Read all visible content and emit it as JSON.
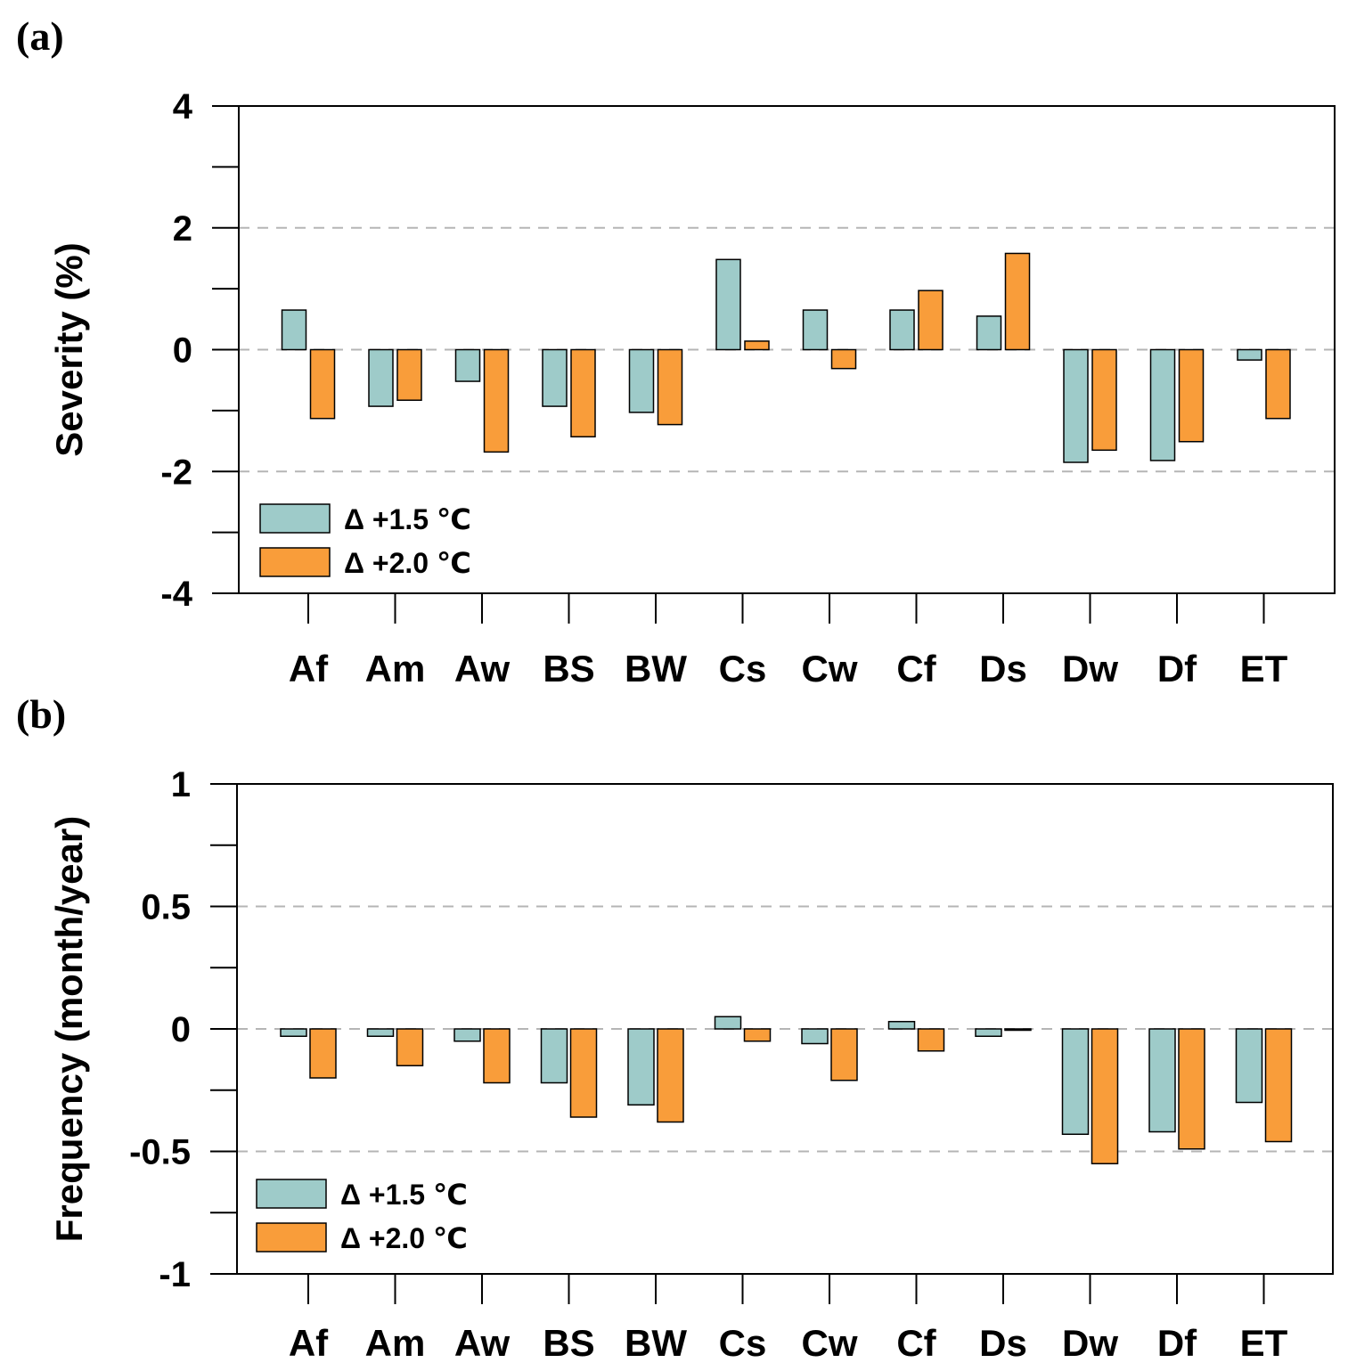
{
  "chart_data": [
    {
      "panel": "(a)",
      "type": "bar",
      "ylabel": "Severity  (%)",
      "ylim": [
        -4,
        4
      ],
      "yticks": [
        4,
        2,
        0,
        -2,
        -4
      ],
      "ytick_labels": [
        "4",
        "2",
        "0",
        "-2",
        "-4"
      ],
      "gridlines": [
        2,
        0,
        -2
      ],
      "categories": [
        "Af",
        "Am",
        "Aw",
        "BS",
        "BW",
        "Cs",
        "Cw",
        "Cf",
        "Ds",
        "Dw",
        "Df",
        "ET"
      ],
      "series": [
        {
          "name": "Δ +1.5 ℃",
          "color": "#9ecbc9",
          "values": [
            0.65,
            -0.93,
            -0.52,
            -0.93,
            -1.03,
            1.48,
            0.65,
            0.65,
            0.55,
            -1.85,
            -1.82,
            -0.17
          ]
        },
        {
          "name": "Δ +2.0 ℃",
          "color": "#f99d3a",
          "values": [
            -1.13,
            -0.83,
            -1.68,
            -1.43,
            -1.23,
            0.14,
            -0.31,
            0.97,
            1.58,
            -1.65,
            -1.51,
            -1.13
          ]
        }
      ],
      "legend_position": "bottom-left"
    },
    {
      "panel": "(b)",
      "type": "bar",
      "ylabel": "Frequency (month/year)",
      "ylim": [
        -1,
        1
      ],
      "yticks": [
        1,
        0.5,
        0,
        -0.5,
        -1
      ],
      "ytick_labels": [
        "1",
        "0.5",
        "0",
        "-0.5",
        "-1"
      ],
      "gridlines": [
        0.5,
        0,
        -0.5
      ],
      "categories": [
        "Af",
        "Am",
        "Aw",
        "BS",
        "BW",
        "Cs",
        "Cw",
        "Cf",
        "Ds",
        "Dw",
        "Df",
        "ET"
      ],
      "series": [
        {
          "name": "Δ +1.5 ℃",
          "color": "#9ecbc9",
          "values": [
            -0.03,
            -0.03,
            -0.05,
            -0.22,
            -0.31,
            0.05,
            -0.06,
            0.03,
            -0.03,
            -0.43,
            -0.42,
            -0.3
          ]
        },
        {
          "name": "Δ +2.0 ℃",
          "color": "#f99d3a",
          "values": [
            -0.2,
            -0.15,
            -0.22,
            -0.36,
            -0.38,
            -0.05,
            -0.21,
            -0.09,
            -0.005,
            -0.55,
            -0.49,
            -0.46
          ]
        }
      ],
      "legend_position": "bottom-left"
    }
  ]
}
